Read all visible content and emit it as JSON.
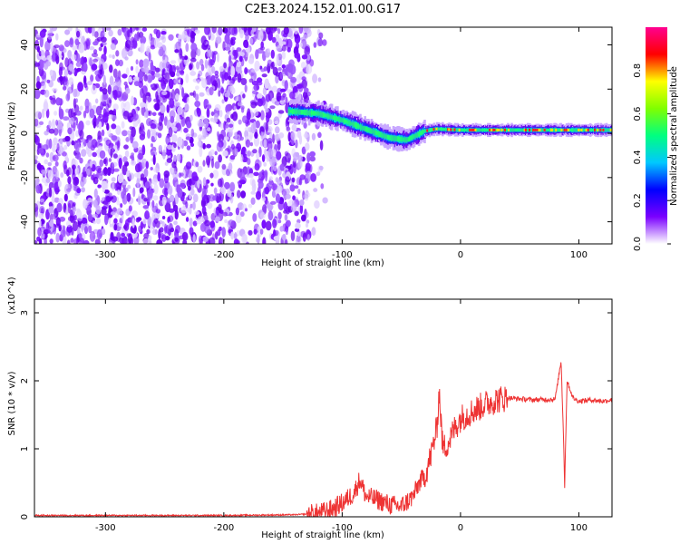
{
  "title": "C2E3.2024.152.01.00.G17",
  "chart_data": [
    {
      "type": "heatmap",
      "xlabel": "Height of straight line (km)",
      "ylabel": "Frequency (Hz)",
      "xlim": [
        -360,
        128
      ],
      "ylim": [
        -50,
        48
      ],
      "x_ticks": [
        -300,
        -200,
        -100,
        0,
        100
      ],
      "y_ticks": [
        -40,
        -20,
        0,
        20,
        40
      ],
      "colorbar": {
        "label": "Normalized spectral amplitude",
        "range": [
          0,
          1
        ],
        "ticks": [
          "0.0",
          "0.2",
          "0.4",
          "0.6",
          "0.8"
        ],
        "colors": [
          "#ffffff",
          "#7a00ff",
          "#0000ff",
          "#00c8ff",
          "#00ff80",
          "#80ff00",
          "#ffff00",
          "#ff0000",
          "#ff0090"
        ]
      },
      "ridge": {
        "description_points": [
          {
            "x": -145,
            "y": 10
          },
          {
            "x": -120,
            "y": 9
          },
          {
            "x": -100,
            "y": 6
          },
          {
            "x": -80,
            "y": 2
          },
          {
            "x": -60,
            "y": -2
          },
          {
            "x": -45,
            "y": -3
          },
          {
            "x": -30,
            "y": 1
          },
          {
            "x": -20,
            "y": 2
          },
          {
            "x": 0,
            "y": 1.5
          },
          {
            "x": 50,
            "y": 1.5
          },
          {
            "x": 128,
            "y": 1.5
          }
        ]
      },
      "noise_region": {
        "x_from": -360,
        "x_to": -128
      }
    },
    {
      "type": "line",
      "xlabel": "Height of straight line (km)",
      "ylabel": "SNR (10 * v/v)",
      "y_multiplier": "(x10^4)",
      "xlim": [
        -360,
        128
      ],
      "ylim": [
        0,
        3.2
      ],
      "x_ticks": [
        -300,
        -200,
        -100,
        0,
        100
      ],
      "y_ticks": [
        0,
        1,
        2,
        3
      ],
      "color": "#ee3333",
      "series": [
        {
          "x": [
            -360,
            -300,
            -200,
            -140,
            -120,
            -110,
            -100,
            -90,
            -85,
            -80,
            -70,
            -60,
            -50,
            -40,
            -35,
            -30,
            -25,
            -20,
            -18,
            -15,
            -10,
            -5,
            0,
            10,
            20,
            30,
            40,
            60,
            80,
            85,
            87,
            88,
            90,
            95,
            100,
            110,
            120,
            128
          ],
          "y": [
            0.02,
            0.02,
            0.02,
            0.03,
            0.05,
            0.1,
            0.2,
            0.35,
            0.55,
            0.3,
            0.25,
            0.18,
            0.15,
            0.3,
            0.5,
            0.6,
            0.9,
            1.3,
            1.85,
            1.0,
            1.1,
            1.3,
            1.45,
            1.55,
            1.65,
            1.72,
            1.75,
            1.72,
            1.73,
            2.3,
            1.2,
            0.45,
            2.0,
            1.75,
            1.7,
            1.72,
            1.7,
            1.72
          ]
        }
      ]
    }
  ]
}
